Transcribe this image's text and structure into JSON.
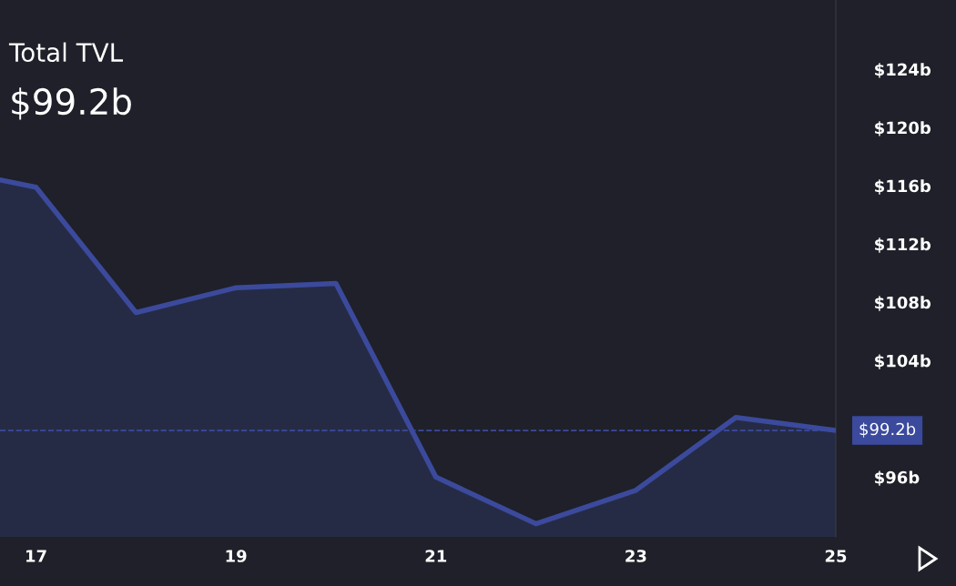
{
  "chart_data": {
    "type": "area",
    "title": "Total TVL",
    "subtitle": "$99.2b",
    "x": [
      16.64,
      17,
      18,
      19,
      20,
      21,
      22,
      23,
      24,
      25
    ],
    "series": [
      {
        "color": "#3b4a9c",
        "values": [
          116.4,
          115.9,
          107.3,
          109.0,
          109.3,
          96.0,
          92.8,
          95.1,
          100.1,
          99.2
        ]
      }
    ],
    "xlim": [
      16.64,
      25
    ],
    "xticks": [
      17,
      19,
      21,
      23,
      25
    ],
    "ylim": [
      91.9,
      128.75
    ],
    "yticks": [
      {
        "value": 96,
        "label": "$96b"
      },
      {
        "value": 104,
        "label": "$104b"
      },
      {
        "value": 108,
        "label": "$108b"
      },
      {
        "value": 112,
        "label": "$112b"
      },
      {
        "value": 116,
        "label": "$116b"
      },
      {
        "value": 120,
        "label": "$120b"
      },
      {
        "value": 124,
        "label": "$124b"
      }
    ],
    "ref_lines": [
      {
        "axis": "y",
        "value": 99.2,
        "label": "$99.2b",
        "color": "#3b4a9c",
        "line_style": "dashed"
      }
    ],
    "grid": false,
    "legend": false,
    "marker": "none",
    "line_style": "solid"
  }
}
